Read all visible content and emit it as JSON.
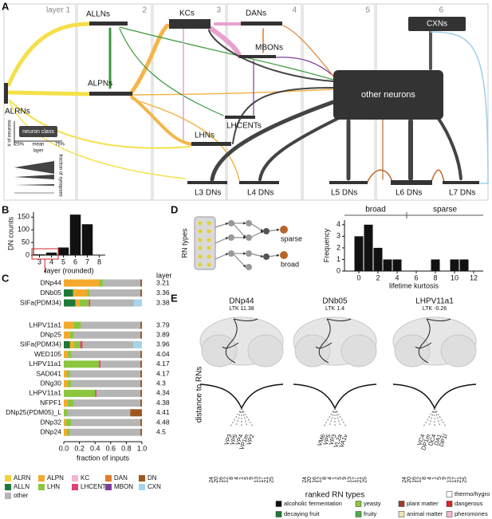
{
  "panel_labels": [
    "A",
    "B",
    "C",
    "D",
    "E"
  ],
  "diagram_a": {
    "layers": [
      "layer 1",
      "2",
      "3",
      "4",
      "5",
      "6"
    ],
    "nodes": [
      "ALRNs",
      "ALLNs",
      "ALPNs",
      "KCs",
      "DANs",
      "MBONs",
      "LHCENTs",
      "LHNs",
      "CXNs",
      "other neurons",
      "L3 DNs",
      "L4 DNs",
      "L5 DNs",
      "L6 DNs",
      "L7 DNs"
    ],
    "legend": {
      "neuron_class": "neuron class",
      "count_axis": "# of neurons",
      "q25": "25%",
      "mean": "mean",
      "q75": "75%",
      "layer": "layer",
      "synapses": "fraction of synapses"
    }
  },
  "chart_data": [
    {
      "type": "bar",
      "x": [
        3,
        4,
        5,
        6,
        7
      ],
      "values": [
        3,
        10,
        30,
        160,
        122
      ],
      "color": "#111111",
      "xlim": [
        2.5,
        8.5
      ],
      "xticks": [
        3,
        4,
        5,
        6,
        7,
        8
      ],
      "ylim": [
        0,
        170
      ],
      "yticks": [
        0,
        50,
        100,
        150
      ],
      "ylabel": "DN counts",
      "xlabel": "layer (rounded)"
    },
    {
      "type": "stacked_barh",
      "categories": [
        "DNp44",
        "DNb05",
        "SIFa(PDM34)",
        "LHPV11a1",
        "DNp25",
        "SIFa(PDM34)",
        "WED105",
        "LHPV11a1",
        "SAD041",
        "DNg30",
        "LHPV11a1",
        "NFPF1",
        "DNp25(PDM05)_L",
        "DNp32",
        "DNp24"
      ],
      "layer_header": "layer",
      "layers": [
        3.21,
        3.36,
        3.38,
        3.79,
        3.89,
        3.96,
        4.04,
        4.17,
        4.17,
        4.3,
        4.34,
        4.38,
        4.41,
        4.48,
        4.5
      ],
      "series": [
        {
          "name": "ALRN",
          "color": "#f3d23a",
          "values": [
            0,
            0,
            0,
            0,
            0,
            0,
            0,
            0,
            0,
            0,
            0,
            0,
            0,
            0,
            0
          ]
        },
        {
          "name": "ALLN",
          "color": "#1f7a3a",
          "values": [
            0,
            0.12,
            0.15,
            0,
            0,
            0.08,
            0,
            0,
            0,
            0,
            0,
            0,
            0,
            0,
            0
          ]
        },
        {
          "name": "ALPN",
          "color": "#f4a92c",
          "values": [
            0.45,
            0.18,
            0.05,
            0.12,
            0.08,
            0.05,
            0.05,
            0,
            0.04,
            0.05,
            0,
            0.05,
            0,
            0.03,
            0.04
          ]
        },
        {
          "name": "LHN",
          "color": "#8cc63f",
          "values": [
            0.05,
            0.03,
            0.12,
            0.1,
            0.05,
            0.08,
            0.05,
            0.45,
            0.04,
            0.05,
            0.4,
            0.08,
            0.05,
            0.07,
            0.04
          ]
        },
        {
          "name": "KC",
          "color": "#f2b6d2",
          "values": [
            0,
            0,
            0,
            0,
            0,
            0,
            0,
            0,
            0,
            0,
            0,
            0,
            0,
            0,
            0
          ]
        },
        {
          "name": "LHCENT",
          "color": "#e0407a",
          "values": [
            0,
            0,
            0.02,
            0,
            0,
            0.03,
            0,
            0.02,
            0,
            0,
            0.02,
            0,
            0,
            0,
            0
          ]
        },
        {
          "name": "DAN",
          "color": "#e27b2b",
          "values": [
            0,
            0,
            0,
            0,
            0,
            0,
            0,
            0,
            0,
            0,
            0,
            0,
            0,
            0,
            0
          ]
        },
        {
          "name": "MBON",
          "color": "#7b3f98",
          "values": [
            0,
            0,
            0,
            0,
            0,
            0,
            0,
            0,
            0,
            0,
            0,
            0,
            0,
            0,
            0
          ]
        },
        {
          "name": "other",
          "color": "#b5b5b5",
          "values": [
            0.48,
            0.65,
            0.56,
            0.76,
            0.85,
            0.65,
            0.88,
            0.51,
            0.9,
            0.88,
            0.56,
            0.85,
            0.8,
            0.88,
            0.9
          ]
        },
        {
          "name": "CXN",
          "color": "#a6d4ea",
          "values": [
            0,
            0,
            0.1,
            0,
            0,
            0.11,
            0,
            0,
            0,
            0,
            0,
            0,
            0,
            0,
            0
          ]
        },
        {
          "name": "DN",
          "color": "#a0561f",
          "values": [
            0.02,
            0.02,
            0,
            0.02,
            0.02,
            0,
            0.02,
            0.02,
            0.02,
            0.02,
            0.02,
            0.02,
            0.15,
            0.02,
            0.02
          ]
        }
      ],
      "xlim": [
        0,
        1
      ],
      "xticks": [
        {
          "value": 0,
          "label": "0.0"
        },
        0.2,
        0.4,
        0.6,
        0.8,
        {
          "value": 1,
          "label": "1.0"
        }
      ],
      "xlabel": "fraction of inputs"
    },
    {
      "type": "histogram",
      "bins": [
        -0.5,
        0.5,
        1.5,
        2.5,
        3.5,
        4.5,
        5.5,
        6.5,
        7.5,
        8.5,
        9.5,
        10.5,
        11.5,
        12.5
      ],
      "values": [
        3,
        4,
        2,
        1,
        1,
        0,
        0,
        0,
        1,
        0,
        1,
        1,
        0
      ],
      "color": "#111111",
      "xlim": [
        -1.5,
        13
      ],
      "xticks": [
        0,
        2,
        4,
        6,
        8,
        10,
        12
      ],
      "ylim": [
        0,
        4.4
      ],
      "yticks": [
        0,
        1,
        2,
        3,
        4
      ],
      "ylabel": "Frequency",
      "xlabel": "lifetime kurtosis",
      "annotations": [
        "broad",
        "sparse"
      ]
    }
  ],
  "diagram_d": {
    "rn_types": "RN types",
    "sparse": "sparse",
    "broad": "broad"
  },
  "panel_e": {
    "neurons": [
      {
        "name": "DNp44",
        "ltk": "LTK 11.38",
        "leaves": [
          "VP3",
          "VP5",
          "VP4",
          "VP1m",
          "VP2"
        ]
      },
      {
        "name": "DNb05",
        "ltk": "LTK 1.4",
        "leaves": [
          "VM6",
          "VP5",
          "VP3",
          "VL2a",
          "VA1v"
        ]
      },
      {
        "name": "LHPV11a1",
        "ltk": "LTK -0.26",
        "leaves": [
          "VC4",
          "DP1m",
          "DC4",
          "DA1",
          "DP1l"
        ]
      }
    ],
    "ylabel": "distance to RNs",
    "xlabel": "ranked RN types",
    "rank_ticks": [
      24,
      20,
      16,
      12,
      8,
      4,
      1,
      5,
      9,
      13,
      17,
      21,
      25
    ],
    "legend": [
      {
        "name": "alcoholic fermentation",
        "color": "#111111"
      },
      {
        "name": "decaying fruit",
        "color": "#1f7a3a"
      },
      {
        "name": "yeasty",
        "color": "#8cc63f"
      },
      {
        "name": "fruity",
        "color": "#4fae4a"
      },
      {
        "name": "plant matter",
        "color": "#a0392b"
      },
      {
        "name": "animal matter",
        "color": "#efe3b4"
      },
      {
        "name": "dangerous",
        "color": "#d7262b"
      },
      {
        "name": "pheromones",
        "color": "#f2b6d2"
      },
      {
        "name": "thermo/hygro",
        "color": "#ffffff"
      }
    ]
  }
}
